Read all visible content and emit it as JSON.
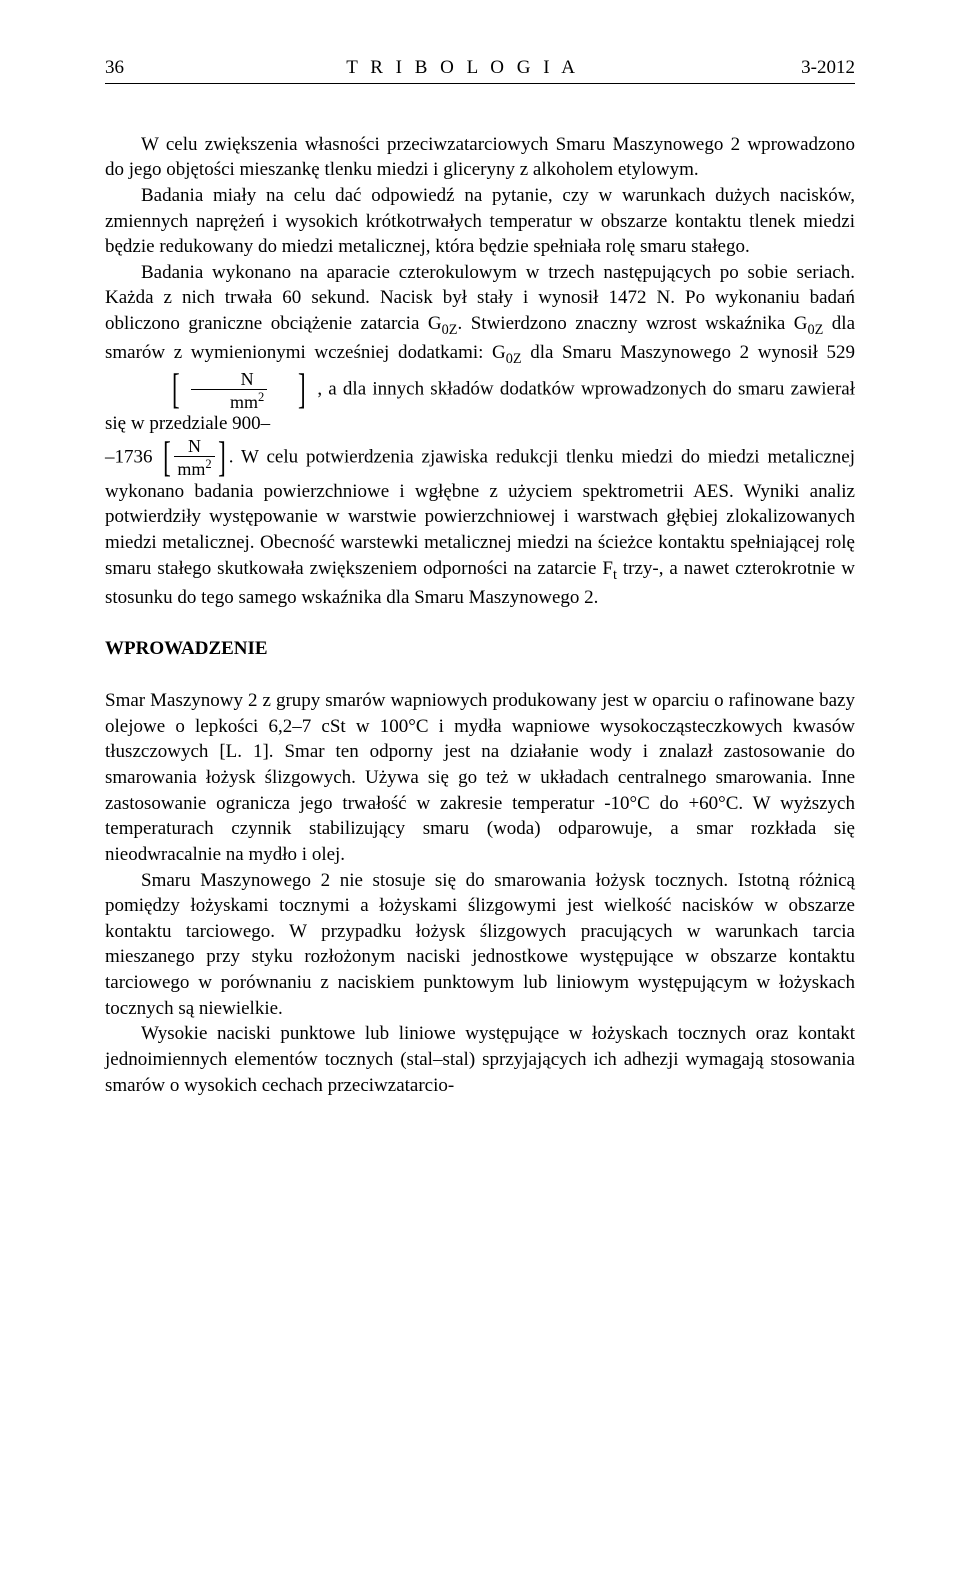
{
  "header": {
    "page_number": "36",
    "journal_title": "T R I B O L O G I A",
    "issue_info": "3-2012"
  },
  "p1": "W celu zwiększenia własności przeciwzatarciowych Smaru Maszynowego 2 wprowadzono do jego objętości mieszankę tlenku miedzi i gliceryny z alkoholem etylowym.",
  "p2": "Badania miały na celu dać odpowiedź na pytanie, czy w warunkach dużych nacisków, zmiennych naprężeń i wysokich krótkotrwałych temperatur w obszarze kontaktu tlenek miedzi będzie redukowany do miedzi metalicznej, która będzie spełniała rolę smaru stałego.",
  "p3a": "Badania wykonano na aparacie czterokulowym w trzech następujących po sobie seriach. Każda z nich trwała 60 sekund. Nacisk był stały i wynosił 1472 N. Po wykonaniu badań obliczono graniczne obciążenie zatarcia G",
  "p3b": ". Stwierdzono znaczny wzrost wskaźnika G",
  "p3c": " dla smarów z wymienionymi wcześniej dodatkami: G",
  "p3d": " dla Smaru Maszynowego 2 wynosił 529 ",
  "p3e": ", a dla innych składów dodatków wprowadzonych do smaru zawierał się w przedziale 900–",
  "p3e2": "–1736 ",
  "p3f": ". W celu potwierdzenia zjawiska redukcji tlenku miedzi do miedzi metalicznej wykonano badania powierzchniowe i wgłębne z użyciem spektrometrii AES. Wyniki analiz potwierdziły występowanie w warstwie powierzchniowej i warstwach głębiej zlokalizowanych miedzi metalicznej. Obecność warstewki metalicznej miedzi na ścieżce kontaktu spełniającej rolę smaru stałego skutkowała zwiększeniem odporności na zatarcie F",
  "p3g": " trzy-, a nawet czterokrotnie w stosunku do tego samego wskaźnika dla Smaru Maszynowego 2.",
  "sub_0z": "0Z",
  "sub_t": "t",
  "frac_n": "N",
  "frac_mm2": "mm",
  "sup_2": "2",
  "section_heading": "WPROWADZENIE",
  "p4": "Smar Maszynowy 2 z grupy smarów wapniowych produkowany jest w oparciu o rafinowane bazy olejowe o lepkości 6,2–7 cSt w 100°C i mydła wapniowe wysokocząsteczkowych kwasów tłuszczowych [L. 1]. Smar ten odporny jest na działanie wody i znalazł zastosowanie do smarowania łożysk ślizgowych. Używa się go też w układach centralnego smarowania. Inne zastosowanie ogranicza jego trwałość w zakresie temperatur -10°C do +60°C. W wyższych temperaturach czynnik stabilizujący smaru (woda) odparowuje, a smar rozkłada się nieodwracalnie na mydło i olej.",
  "p5": "Smaru Maszynowego 2 nie stosuje się do smarowania łożysk tocznych. Istotną różnicą pomiędzy łożyskami tocznymi a łożyskami ślizgowymi jest wielkość nacisków w obszarze kontaktu tarciowego. W przypadku łożysk ślizgowych pracujących w warunkach tarcia mieszanego przy styku rozłożonym naciski jednostkowe występujące w obszarze kontaktu tarciowego w porównaniu z naciskiem punktowym lub liniowym występującym w łożyskach tocznych są niewielkie.",
  "p6": "Wysokie naciski punktowe lub liniowe występujące w łożyskach tocznych oraz kontakt jednoimiennych elementów tocznych (stal–stal) sprzyjających ich adhezji wymagają stosowania smarów o wysokich cechach przeciwzatarcio-"
}
